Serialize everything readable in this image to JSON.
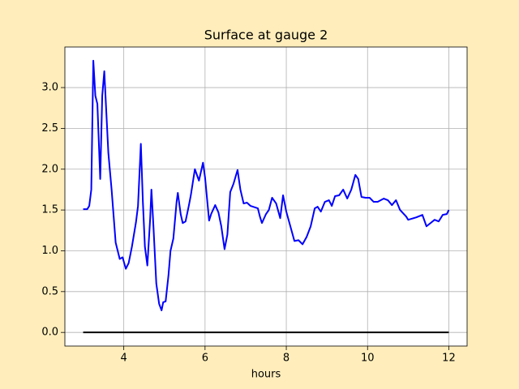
{
  "chart_data": {
    "type": "line",
    "title": "Surface at gauge 2",
    "xlabel": "hours",
    "xlim": [
      2.55,
      12.45
    ],
    "ylim": [
      -0.167,
      3.497
    ],
    "xticks": [
      4,
      6,
      8,
      10,
      12
    ],
    "yticks": [
      {
        "value": 0,
        "label": "0.0"
      },
      {
        "value": 0.5,
        "label": "0.5"
      },
      {
        "value": 1,
        "label": "1.0"
      },
      {
        "value": 1.5,
        "label": "1.5"
      },
      {
        "value": 2,
        "label": "2.0"
      },
      {
        "value": 2.5,
        "label": "2.5"
      },
      {
        "value": 3,
        "label": "3.0"
      }
    ],
    "grid": true,
    "series": [
      {
        "color": "#0000ff",
        "x": [
          3.0,
          3.1,
          3.15,
          3.2,
          3.25,
          3.3,
          3.35,
          3.42,
          3.47,
          3.52,
          3.57,
          3.62,
          3.7,
          3.8,
          3.9,
          3.97,
          4.05,
          4.12,
          4.2,
          4.3,
          4.35,
          4.42,
          4.47,
          4.52,
          4.58,
          4.65,
          4.68,
          4.73,
          4.8,
          4.87,
          4.93,
          4.97,
          5.03,
          5.1,
          5.15,
          5.22,
          5.3,
          5.33,
          5.4,
          5.45,
          5.52,
          5.6,
          5.65,
          5.75,
          5.85,
          5.95,
          6.0,
          6.1,
          6.15,
          6.25,
          6.33,
          6.4,
          6.48,
          6.55,
          6.62,
          6.7,
          6.8,
          6.87,
          6.95,
          7.03,
          7.12,
          7.3,
          7.35,
          7.4,
          7.5,
          7.57,
          7.65,
          7.75,
          7.85,
          7.92,
          8.0,
          8.1,
          8.2,
          8.3,
          8.4,
          8.5,
          8.6,
          8.7,
          8.77,
          8.85,
          8.95,
          9.05,
          9.12,
          9.2,
          9.3,
          9.4,
          9.5,
          9.6,
          9.7,
          9.77,
          9.85,
          9.95,
          10.05,
          10.15,
          10.25,
          10.4,
          10.5,
          10.6,
          10.7,
          10.8,
          10.95,
          11.0,
          11.2,
          11.35,
          11.45,
          11.55,
          11.65,
          11.75,
          11.85,
          11.95,
          12.0
        ],
        "values": [
          1.51,
          1.51,
          1.55,
          1.75,
          3.33,
          2.9,
          2.8,
          1.88,
          2.9,
          3.2,
          2.7,
          2.2,
          1.75,
          1.1,
          0.9,
          0.92,
          0.78,
          0.85,
          1.05,
          1.35,
          1.55,
          2.31,
          1.6,
          1.05,
          0.82,
          1.4,
          1.75,
          1.3,
          0.6,
          0.35,
          0.27,
          0.37,
          0.38,
          0.7,
          1.0,
          1.15,
          1.6,
          1.71,
          1.45,
          1.34,
          1.36,
          1.55,
          1.68,
          2.0,
          1.86,
          2.08,
          1.9,
          1.37,
          1.45,
          1.56,
          1.47,
          1.3,
          1.02,
          1.2,
          1.72,
          1.82,
          1.99,
          1.75,
          1.58,
          1.59,
          1.55,
          1.52,
          1.42,
          1.34,
          1.45,
          1.5,
          1.65,
          1.58,
          1.4,
          1.68,
          1.48,
          1.3,
          1.12,
          1.13,
          1.08,
          1.17,
          1.3,
          1.52,
          1.54,
          1.48,
          1.6,
          1.62,
          1.55,
          1.67,
          1.68,
          1.75,
          1.64,
          1.75,
          1.93,
          1.88,
          1.66,
          1.65,
          1.65,
          1.6,
          1.6,
          1.64,
          1.62,
          1.56,
          1.62,
          1.5,
          1.42,
          1.38,
          1.41,
          1.44,
          1.3,
          1.34,
          1.38,
          1.36,
          1.44,
          1.45,
          1.5
        ]
      },
      {
        "color": "#000000",
        "x": [
          3,
          12
        ],
        "values": [
          0,
          0
        ]
      }
    ]
  }
}
